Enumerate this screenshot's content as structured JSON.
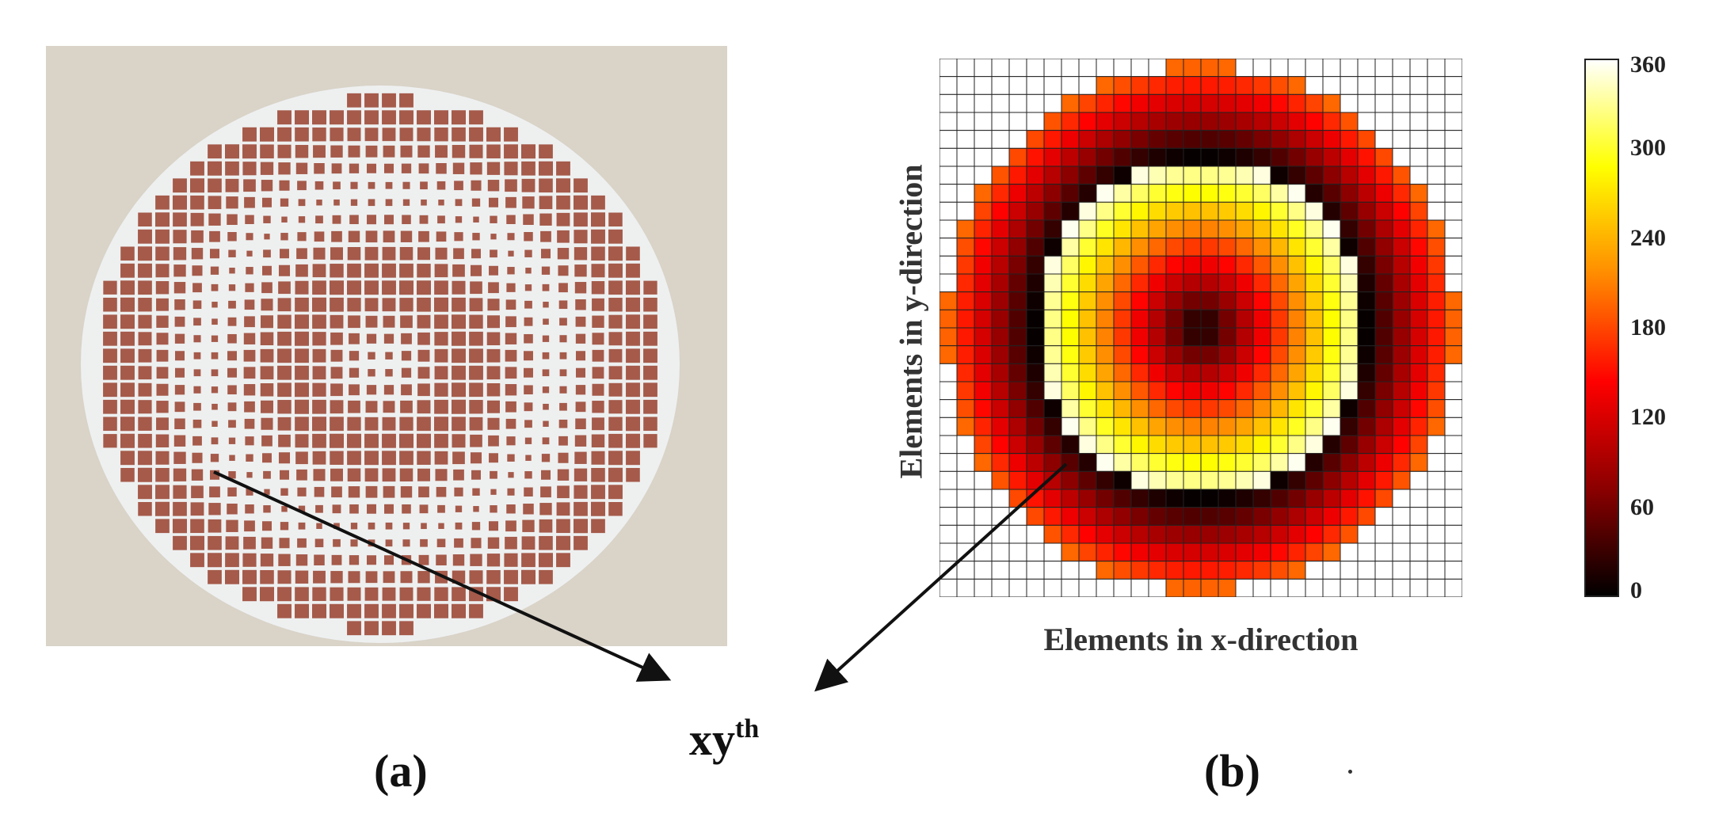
{
  "labels": {
    "panel_a": "(a)",
    "panel_b": "(b)",
    "xy_main": "xy",
    "xy_sup": "th"
  },
  "colors": {
    "background": "#ffffff",
    "photo_bg": "#d9d3c8",
    "substrate": "#eef0f0",
    "copper": "#a55a4a",
    "grid_line": "#222222",
    "colormap": [
      "#000000",
      "#8b0000",
      "#ff0000",
      "#ff8c00",
      "#ffff00",
      "#ffffff"
    ]
  },
  "chart_data": {
    "type": "heatmap",
    "title": "",
    "xlabel": "Elements in x-direction",
    "ylabel": "Elements in y-direction",
    "grid_size": [
      30,
      30
    ],
    "colorbar": {
      "min": 0,
      "max": 360,
      "ticks": [
        "360",
        "300",
        "240",
        "180",
        "120",
        "60",
        "0"
      ],
      "tick_values": [
        360,
        300,
        240,
        180,
        120,
        60,
        0
      ]
    },
    "pattern": "radial phase distribution, 0 at center rising to 360 across concentric rings, elements outside circular aperture blank"
  }
}
